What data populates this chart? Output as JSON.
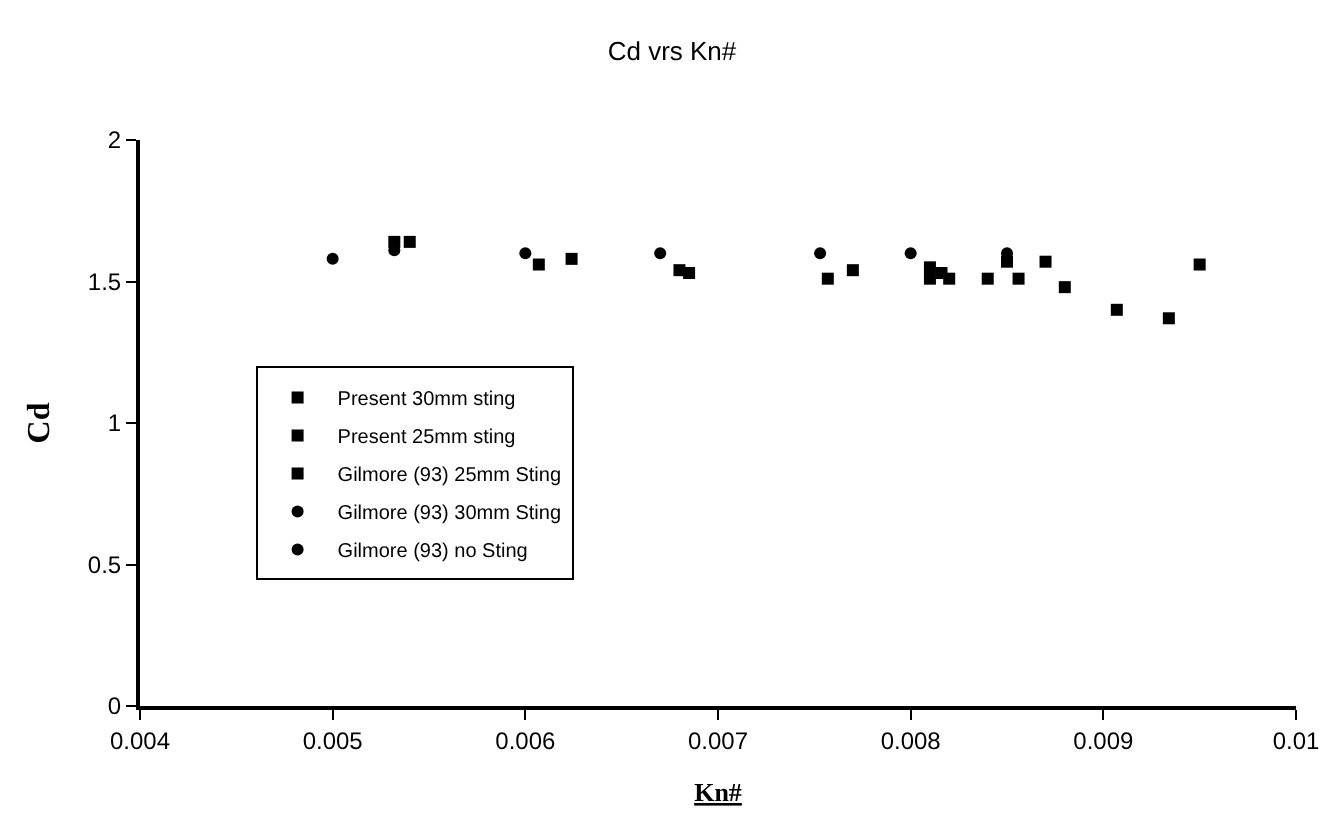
{
  "chart_data": {
    "type": "scatter",
    "title": "Cd vrs Kn#",
    "xlabel": "Kn#",
    "ylabel": "Cd",
    "xlim": [
      0.004,
      0.01
    ],
    "xticks": [
      0.004,
      0.005,
      0.006,
      0.007,
      0.008,
      0.009,
      0.01
    ],
    "ylim": [
      0,
      2
    ],
    "yticks": [
      0,
      0.5,
      1,
      1.5,
      2
    ],
    "legend": "left",
    "series": [
      {
        "name": "Present 30mm sting",
        "color": "#000000",
        "marker": "square",
        "x": [
          0.00757,
          0.0081,
          0.0082,
          0.0084,
          0.00856,
          0.0088,
          0.00907,
          0.00934
        ],
        "values": [
          1.51,
          1.51,
          1.51,
          1.51,
          1.51,
          1.48,
          1.4,
          1.37
        ]
      },
      {
        "name": "Present 25mm sting",
        "color": "#000000",
        "marker": "square",
        "x": [
          0.0077,
          0.0081,
          0.00816,
          0.0085,
          0.0087,
          0.0095
        ],
        "values": [
          1.54,
          1.55,
          1.53,
          1.57,
          1.57,
          1.56
        ]
      },
      {
        "name": "Gilmore (93) 25mm Sting",
        "color": "#000000",
        "marker": "square",
        "x": [
          0.00532,
          0.0054,
          0.00607,
          0.00624,
          0.0068,
          0.00685
        ],
        "values": [
          1.64,
          1.64,
          1.56,
          1.58,
          1.54,
          1.53
        ]
      },
      {
        "name": "Gilmore (93) 30mm Sting",
        "color": "#000000",
        "marker": "circle",
        "x": [
          0.00532,
          0.006,
          0.0067
        ],
        "values": [
          1.61,
          1.6,
          1.6
        ]
      },
      {
        "name": "Gilmore (93) no Sting",
        "color": "#000000",
        "marker": "circle",
        "x": [
          0.005,
          0.00753,
          0.008,
          0.0085
        ],
        "values": [
          1.58,
          1.6,
          1.6,
          1.6
        ]
      }
    ]
  }
}
